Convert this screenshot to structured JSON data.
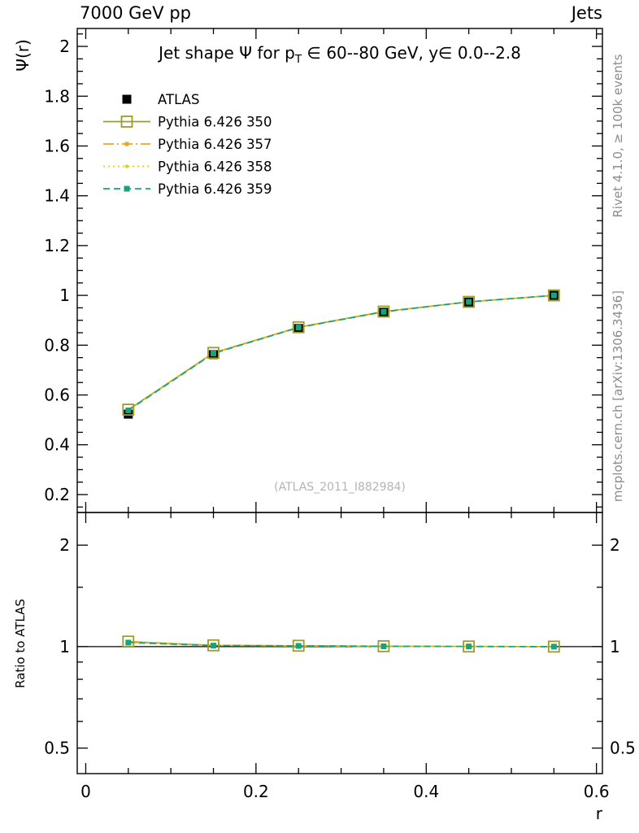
{
  "header": {
    "left": "7000 GeV pp",
    "right": "Jets"
  },
  "side_notes": {
    "rivet": "Rivet 4.1.0, ≥ 100k events",
    "mcplots": "mcplots.cern.ch [arXiv:1306.3436]"
  },
  "chart_data": {
    "type": "line",
    "title": "Jet shape Ψ for p_T ∈ 60--80 GeV, y∈ 0.0--2.8",
    "title_parts": {
      "prefix": "Jet shape Ψ for p",
      "sub": "T",
      "suffix": " ∈ 60--80 GeV, y∈ 0.0--2.8"
    },
    "xlabel": "r",
    "ylabel": "Ψ(r)",
    "ratio_ylabel": "Ratio to ATLAS",
    "watermark": "(ATLAS_2011_I882984)",
    "x": [
      0.05,
      0.15,
      0.25,
      0.35,
      0.45,
      0.55
    ],
    "xlim": [
      -0.01,
      0.607
    ],
    "ylim": [
      0.128,
      2.072
    ],
    "xticks": [
      0,
      0.2,
      0.4,
      0.6
    ],
    "yticks": [
      0.2,
      0.4,
      0.6,
      0.8,
      1,
      1.2,
      1.4,
      1.6,
      1.8,
      2
    ],
    "ratio_ylim": [
      0.42,
      2.5
    ],
    "ratio_yticks": [
      0.5,
      1,
      2
    ],
    "ratio_ytick_minors": [
      0.6,
      0.7,
      0.8,
      0.9,
      1.5
    ],
    "grid": false,
    "legend_position": "top-left",
    "series": [
      {
        "name": "ATLAS",
        "role": "data",
        "color": "#000000",
        "marker": "filled-square",
        "values": [
          0.523,
          0.762,
          0.867,
          0.932,
          0.973,
          1.0
        ],
        "errors": [
          0.012,
          0.008,
          0.006,
          0.005,
          0.004,
          0.003
        ]
      },
      {
        "name": "Pythia 6.426 350",
        "role": "mc",
        "color": "#9c9c2a",
        "line": "solid",
        "marker": "open-square",
        "values": [
          0.541,
          0.769,
          0.872,
          0.935,
          0.974,
          1.0
        ],
        "ratio": [
          1.035,
          1.009,
          1.006,
          1.003,
          1.001,
          1.0
        ]
      },
      {
        "name": "Pythia 6.426 357",
        "role": "mc",
        "color": "#e7a621",
        "line": "dashdot",
        "marker": "tiny-square",
        "values": [
          0.539,
          0.768,
          0.871,
          0.934,
          0.974,
          1.0
        ],
        "ratio": [
          1.03,
          1.008,
          1.005,
          1.002,
          1.001,
          1.0
        ]
      },
      {
        "name": "Pythia 6.426 358",
        "role": "mc",
        "color": "#e3cf1e",
        "line": "dotted",
        "marker": "tiny-dot",
        "values": [
          0.54,
          0.768,
          0.871,
          0.934,
          0.974,
          1.0
        ],
        "ratio": [
          1.032,
          1.008,
          1.005,
          1.002,
          1.001,
          1.0
        ]
      },
      {
        "name": "Pythia 6.426 359",
        "role": "mc",
        "color": "#17a47b",
        "line": "dashed",
        "marker": "small-filled-square",
        "values": [
          0.538,
          0.767,
          0.871,
          0.934,
          0.974,
          1.0
        ],
        "ratio": [
          1.028,
          1.007,
          1.005,
          1.002,
          1.001,
          1.0
        ]
      }
    ]
  }
}
